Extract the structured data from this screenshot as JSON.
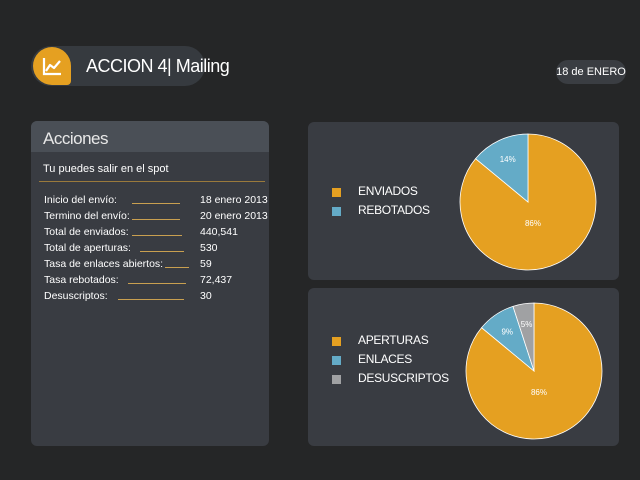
{
  "header": {
    "title": "ACCION 4| Mailing",
    "date": "18 de ENERO",
    "logo_icon": "line-chart-icon"
  },
  "colors": {
    "accent": "#e5a021",
    "blue": "#64abc7",
    "gray": "#a0a1a3",
    "panel": "#393c42",
    "background": "#252627"
  },
  "actions": {
    "title": "Acciones",
    "subtitle": "Tu puedes salir en el spot",
    "stats": [
      {
        "label": "Inicio del envío:",
        "value": "18 enero 2013"
      },
      {
        "label": "Termino del envío:",
        "value": "20 enero 2013"
      },
      {
        "label": "Total de enviados:",
        "value": "440,541"
      },
      {
        "label": "Total de aperturas:",
        "value": "530"
      },
      {
        "label": "Tasa de enlaces abiertos:",
        "value": "59"
      },
      {
        "label": "Tasa rebotados:",
        "value": "72,437"
      },
      {
        "label": "Desuscriptos:",
        "value": "30"
      }
    ]
  },
  "chart_data": [
    {
      "type": "pie",
      "title": "",
      "legend": "left",
      "slices": [
        {
          "name": "ENVIADOS",
          "value": 86,
          "label": "86%",
          "color": "#e5a021"
        },
        {
          "name": "REBOTADOS",
          "value": 14,
          "label": "14%",
          "color": "#64abc7"
        }
      ]
    },
    {
      "type": "pie",
      "title": "",
      "legend": "left",
      "slices": [
        {
          "name": "APERTURAS",
          "value": 86,
          "label": "86%",
          "color": "#e5a021"
        },
        {
          "name": "ENLACES",
          "value": 9,
          "label": "9%",
          "color": "#64abc7"
        },
        {
          "name": "DESUSCRIPTOS",
          "value": 5,
          "label": "5%",
          "color": "#a0a1a3"
        }
      ]
    }
  ]
}
